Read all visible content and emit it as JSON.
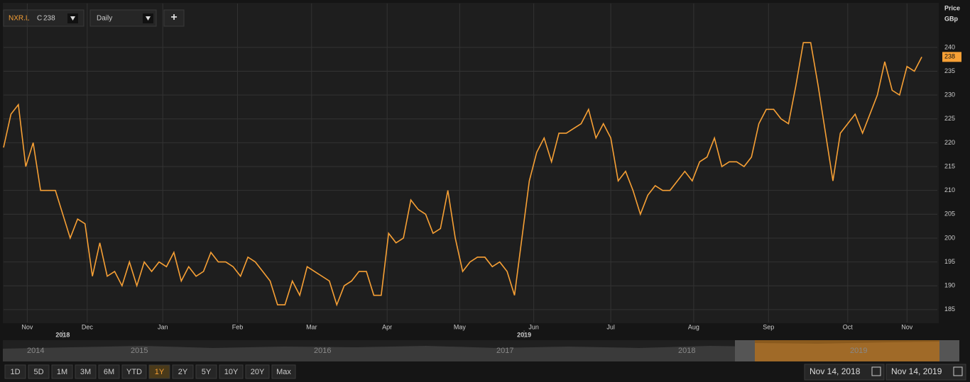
{
  "toolbar": {
    "symbol": "NXR.L",
    "close_prefix": "C",
    "last_value": 238,
    "interval": "Daily",
    "add_button": "+"
  },
  "chart_data": {
    "type": "line",
    "axis_title": [
      "Price",
      "GBp"
    ],
    "series": [
      {
        "name": "NXR.L",
        "color": "#f7a035",
        "values": [
          219,
          226,
          228,
          215,
          220,
          210,
          210,
          210,
          205,
          200,
          204,
          203,
          192,
          199,
          192,
          193,
          190,
          195,
          190,
          195,
          193,
          195,
          194,
          197,
          191,
          194,
          192,
          193,
          197,
          195,
          195,
          194,
          192,
          196,
          195,
          193,
          191,
          186,
          186,
          191,
          188,
          194,
          193,
          192,
          191,
          186,
          190,
          191,
          193,
          193,
          188,
          188,
          201,
          199,
          200,
          208,
          206,
          205,
          201,
          202,
          210,
          200,
          193,
          195,
          196,
          196,
          194,
          195,
          193,
          188,
          200,
          212,
          218,
          221,
          216,
          222,
          222,
          223,
          224,
          227,
          221,
          224,
          221,
          212,
          214,
          210,
          205,
          209,
          211,
          210,
          210,
          212,
          214,
          212,
          216,
          217,
          221,
          215,
          216,
          216,
          215,
          217,
          224,
          227,
          227,
          225,
          224,
          232,
          241,
          241,
          232,
          222,
          212,
          222,
          224,
          226,
          222,
          226,
          230,
          237,
          231,
          230,
          236,
          235,
          238
        ]
      }
    ],
    "xlim": [
      0,
      126.1
    ],
    "xticks": [
      {
        "value": 3.2,
        "label": "Nov"
      },
      {
        "value": 11.3,
        "label": "Dec"
      },
      {
        "value": 21.5,
        "label": "Jan"
      },
      {
        "value": 31.6,
        "label": "Feb"
      },
      {
        "value": 41.6,
        "label": "Mar"
      },
      {
        "value": 51.8,
        "label": "Apr"
      },
      {
        "value": 61.6,
        "label": "May"
      },
      {
        "value": 71.6,
        "label": "Jun"
      },
      {
        "value": 82,
        "label": "Jul"
      },
      {
        "value": 93.2,
        "label": "Aug"
      },
      {
        "value": 103.3,
        "label": "Sep"
      },
      {
        "value": 114,
        "label": "Oct"
      },
      {
        "value": 122,
        "label": "Nov"
      }
    ],
    "year_ticks": [
      {
        "value": 8,
        "label": "2018"
      },
      {
        "value": 70.3,
        "label": "2019"
      }
    ],
    "ylim": [
      182.3,
      249.2
    ],
    "yticks": [
      185,
      190,
      195,
      200,
      205,
      210,
      215,
      220,
      225,
      230,
      235,
      240
    ],
    "grid": true
  },
  "navigator": {
    "years": [
      "2014",
      "2015",
      "2016",
      "2017",
      "2018",
      "2019"
    ]
  },
  "range_buttons": [
    "1D",
    "5D",
    "1M",
    "3M",
    "6M",
    "YTD",
    "1Y",
    "2Y",
    "5Y",
    "10Y",
    "20Y",
    "Max"
  ],
  "active_range_index": 6,
  "date_range": {
    "from": "Nov 14, 2018",
    "to": "Nov 14, 2019"
  }
}
